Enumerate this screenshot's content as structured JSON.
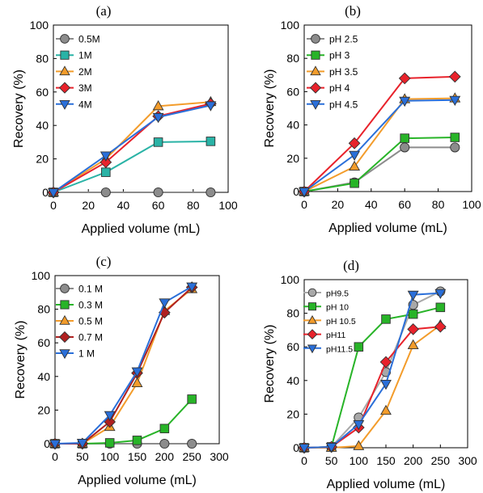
{
  "chart_data": [
    {
      "type": "line",
      "panel": "(a)",
      "xlabel": "Applied volume (mL)",
      "ylabel": "Recovery (%)",
      "xlim": [
        0,
        100
      ],
      "ylim": [
        0,
        100
      ],
      "xticks": [
        0,
        20,
        40,
        60,
        80,
        100
      ],
      "yticks": [
        0,
        20,
        40,
        60,
        80,
        100
      ],
      "legend": "top-left",
      "x": [
        0,
        30,
        60,
        90
      ],
      "series": [
        {
          "name": "0.5M",
          "values": [
            0,
            0,
            0,
            0
          ],
          "color": "#8c8c8c",
          "marker": "circle"
        },
        {
          "name": "1M",
          "values": [
            0,
            12,
            30,
            30.5
          ],
          "color": "#2ab3a6",
          "marker": "square"
        },
        {
          "name": "2M",
          "values": [
            0,
            20,
            51.5,
            54
          ],
          "color": "#f39c2b",
          "marker": "triangle-up"
        },
        {
          "name": "3M",
          "values": [
            0,
            18,
            45.5,
            53
          ],
          "color": "#e8222b",
          "marker": "diamond"
        },
        {
          "name": "4M",
          "values": [
            0,
            22,
            45,
            52
          ],
          "color": "#2a6fd9",
          "marker": "triangle-down"
        }
      ]
    },
    {
      "type": "line",
      "panel": "(b)",
      "xlabel": "Applied volume (mL)",
      "ylabel": "Recovery (%)",
      "xlim": [
        0,
        100
      ],
      "ylim": [
        0,
        100
      ],
      "xticks": [
        0,
        20,
        40,
        60,
        80,
        100
      ],
      "yticks": [
        0,
        20,
        40,
        60,
        80,
        100
      ],
      "legend": "top-left",
      "x": [
        0,
        30,
        60,
        90
      ],
      "series": [
        {
          "name": "pH 2.5",
          "values": [
            0,
            5.5,
            26.5,
            26.5
          ],
          "color": "#8c8c8c",
          "marker": "circle"
        },
        {
          "name": "pH 3",
          "values": [
            0,
            5,
            32,
            32.5
          ],
          "color": "#28b428",
          "marker": "square"
        },
        {
          "name": "pH 3.5",
          "values": [
            0,
            15,
            55.5,
            56
          ],
          "color": "#f39c2b",
          "marker": "triangle-up"
        },
        {
          "name": "pH 4",
          "values": [
            0,
            29,
            68,
            69
          ],
          "color": "#e8222b",
          "marker": "diamond"
        },
        {
          "name": "pH 4.5",
          "values": [
            0,
            22,
            54.5,
            55
          ],
          "color": "#2a6fd9",
          "marker": "triangle-down"
        }
      ]
    },
    {
      "type": "line",
      "panel": "(c)",
      "xlabel": "Applied volume (mL)",
      "ylabel": "Recovery (%)",
      "xlim": [
        0,
        300
      ],
      "ylim": [
        0,
        100
      ],
      "xticks": [
        0,
        50,
        100,
        150,
        200,
        250,
        300
      ],
      "yticks": [
        0,
        20,
        40,
        60,
        80,
        100
      ],
      "legend": "top-left",
      "x": [
        0,
        50,
        100,
        150,
        200,
        250
      ],
      "series": [
        {
          "name": "0.1 M",
          "values": [
            0,
            0,
            0,
            0,
            0,
            0
          ],
          "color": "#8c8c8c",
          "marker": "circle"
        },
        {
          "name": "0.3 M",
          "values": [
            0,
            0,
            0.5,
            2,
            9,
            26.5
          ],
          "color": "#28b428",
          "marker": "square"
        },
        {
          "name": "0.5 M",
          "values": [
            0,
            0,
            10,
            36,
            79,
            92
          ],
          "color": "#f39c2b",
          "marker": "triangle-up"
        },
        {
          "name": "0.7 M",
          "values": [
            0,
            0,
            13,
            42,
            78,
            93
          ],
          "color": "#b02020",
          "marker": "diamond"
        },
        {
          "name": "1 M",
          "values": [
            0,
            0.5,
            17,
            43,
            84,
            93.5
          ],
          "color": "#2a6fd9",
          "marker": "triangle-down"
        }
      ]
    },
    {
      "type": "line",
      "panel": "(d)",
      "xlabel": "Applied volume (mL)",
      "ylabel": "Recovery (%)",
      "xlim": [
        0,
        300
      ],
      "ylim": [
        0,
        100
      ],
      "xticks": [
        0,
        50,
        100,
        150,
        200,
        250,
        300
      ],
      "yticks": [
        0,
        20,
        40,
        60,
        80,
        100
      ],
      "legend": "top-left",
      "x": [
        0,
        50,
        100,
        150,
        200,
        250
      ],
      "series": [
        {
          "name": "pH9.5",
          "values": [
            0,
            0.5,
            18,
            45,
            85,
            93
          ],
          "color": "#a8a8a8",
          "marker": "circle"
        },
        {
          "name": "pH 10",
          "values": [
            0,
            0.5,
            60,
            76.5,
            79.5,
            83.5
          ],
          "color": "#28b428",
          "marker": "square"
        },
        {
          "name": "pH 10.5",
          "values": [
            0,
            0,
            1,
            22,
            61,
            73
          ],
          "color": "#f39c2b",
          "marker": "triangle-up"
        },
        {
          "name": "pH11",
          "values": [
            0,
            0.5,
            12,
            51,
            70.5,
            72
          ],
          "color": "#e8222b",
          "marker": "diamond"
        },
        {
          "name": "pH11.5",
          "values": [
            0,
            0.5,
            14,
            38,
            91,
            92
          ],
          "color": "#2a6fd9",
          "marker": "triangle-down"
        }
      ]
    }
  ]
}
